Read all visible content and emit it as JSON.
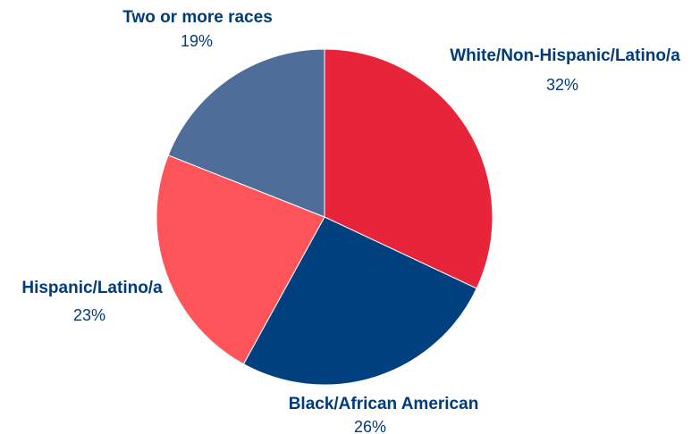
{
  "chart_data": {
    "type": "pie",
    "title": "",
    "slices": [
      {
        "label": "White/Non-Hispanic/Latino/a",
        "value": 32,
        "value_label": "32%",
        "color": "#e8243a"
      },
      {
        "label": "Black/African American",
        "value": 26,
        "value_label": "26%",
        "color": "#00407f"
      },
      {
        "label": "Hispanic/Latino/a",
        "value": 23,
        "value_label": "23%",
        "color": "#fd555a"
      },
      {
        "label": "Two or more races",
        "value": 19,
        "value_label": "19%",
        "color": "#4f6d99"
      }
    ],
    "legend": "none",
    "start_angle": "12 o'clock",
    "direction": "clockwise"
  }
}
